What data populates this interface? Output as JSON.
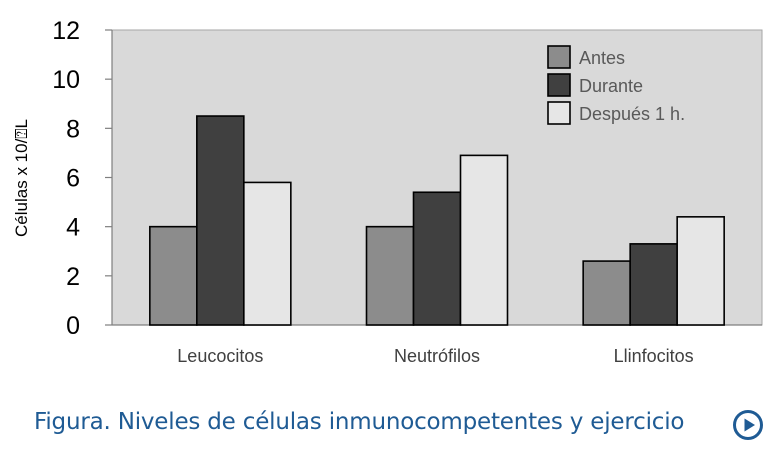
{
  "chart_data": {
    "type": "bar",
    "categories": [
      "Leucocitos",
      "Neutrófilos",
      "Llinfocitos"
    ],
    "series": [
      {
        "name": "Antes",
        "values": [
          4.0,
          4.0,
          2.6
        ],
        "color": "#8c8c8c"
      },
      {
        "name": "Durante",
        "values": [
          8.5,
          5.4,
          3.3
        ],
        "color": "#404040"
      },
      {
        "name": "Después 1 h.",
        "values": [
          5.8,
          6.9,
          4.4
        ],
        "color": "#e6e6e6"
      }
    ],
    "ylabel": "Células x 10/⍰L",
    "ylim": [
      0,
      12
    ],
    "yticks": [
      0,
      2,
      4,
      6,
      8,
      10,
      12
    ],
    "plot_background": "#d9d9d9",
    "legend_position": "top-right",
    "grid": false
  },
  "caption": {
    "text": "Figura. Niveles de células inmunocompetentes y ejercicio",
    "icon": "play-circle-icon",
    "color": "#1f5b94"
  }
}
